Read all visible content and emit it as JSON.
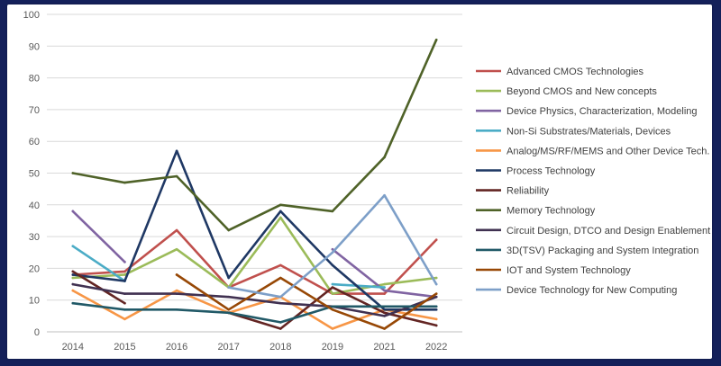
{
  "chart_data": {
    "type": "line",
    "title": "",
    "xlabel": "",
    "ylabel": "",
    "ylim": [
      0,
      100
    ],
    "yticks": [
      0,
      10,
      20,
      30,
      40,
      50,
      60,
      70,
      80,
      90,
      100
    ],
    "grid": "horizontal",
    "legend_position": "right",
    "categories": [
      "2014",
      "2015",
      "2016",
      "2017",
      "2018",
      "2019",
      "2021",
      "2022"
    ],
    "series": [
      {
        "name": "Advanced CMOS Technologies",
        "color": "#c0504d",
        "values": [
          18,
          19,
          32,
          14,
          21,
          12,
          12,
          29
        ]
      },
      {
        "name": "Beyond CMOS and New concepts",
        "color": "#9bbb59",
        "values": [
          17,
          18,
          26,
          14,
          36,
          12,
          15,
          17
        ]
      },
      {
        "name": "Device Physics, Characterization, Modeling",
        "color": "#8064a2",
        "values": [
          38,
          22,
          null,
          null,
          null,
          26,
          13,
          11
        ]
      },
      {
        "name": "Non-Si Substrates/Materials, Devices",
        "color": "#4bacc6",
        "values": [
          27,
          16,
          null,
          null,
          null,
          15,
          14,
          null
        ]
      },
      {
        "name": "Analog/MS/RF/MEMS  and Other Device Tech.",
        "color": "#f79646",
        "values": [
          13,
          4,
          13,
          6,
          11,
          1,
          7,
          4
        ]
      },
      {
        "name": "Process Technology",
        "color": "#1f3864",
        "values": [
          18,
          16,
          57,
          17,
          38,
          21,
          7,
          7
        ]
      },
      {
        "name": "Reliability",
        "color": "#632523",
        "values": [
          19,
          9,
          null,
          6,
          1,
          14,
          6,
          2
        ]
      },
      {
        "name": "Memory Technology",
        "color": "#4f6228",
        "values": [
          50,
          47,
          49,
          32,
          40,
          38,
          55,
          92
        ]
      },
      {
        "name": "Circuit Design, DTCO and Design Enablement",
        "color": "#403151",
        "values": [
          15,
          12,
          12,
          11,
          9,
          8,
          5,
          11
        ]
      },
      {
        "name": "3D(TSV) Packaging and System Integration",
        "color": "#215967",
        "values": [
          9,
          7,
          7,
          6,
          3,
          8,
          8,
          8
        ]
      },
      {
        "name": "IOT and System Technology",
        "color": "#974806",
        "values": [
          null,
          null,
          18,
          7,
          17,
          7,
          1,
          12
        ]
      },
      {
        "name": "Device Technology for New Computing",
        "color": "#7d9fc8",
        "values": [
          null,
          null,
          null,
          14,
          11,
          25,
          43,
          15
        ]
      }
    ]
  }
}
